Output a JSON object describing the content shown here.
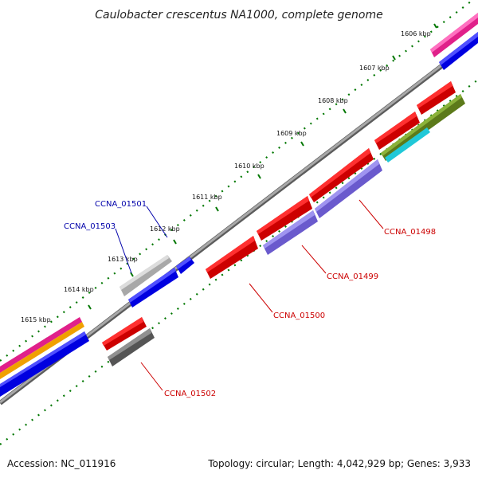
{
  "title": "Caulobacter crescentus NA1000, complete genome",
  "footer": {
    "accession": "Accession: NC_011916",
    "summary": "Topology: circular; Length: 4,042,929 bp; Genes: 3,933"
  },
  "ticks": [
    "1606 kbp",
    "1607 kbp",
    "1608 kbp",
    "1609 kbp",
    "1610 kbp",
    "1611 kbp",
    "1612 kbp",
    "1613 kbp",
    "1614 kbp",
    "1615 kbp"
  ],
  "genes": {
    "right": [
      "CCNA_01498",
      "CCNA_01499",
      "CCNA_01500",
      "CCNA_01502"
    ],
    "left": [
      "CCNA_01501",
      "CCNA_01503"
    ]
  },
  "colors": {
    "forward": "#e00000",
    "reverse_blue": "#0000e0",
    "purple": "#7766dd",
    "gray": "#555555",
    "light_gray": "#bbbbbb",
    "pink": "#e0208a",
    "orange": "#f0a000",
    "olive": "#6b8e23",
    "cyan": "#20c8d8",
    "label_red": "#cc0000",
    "label_blue": "#0000aa",
    "tick_green": "#007700",
    "backbone": "#888888"
  }
}
